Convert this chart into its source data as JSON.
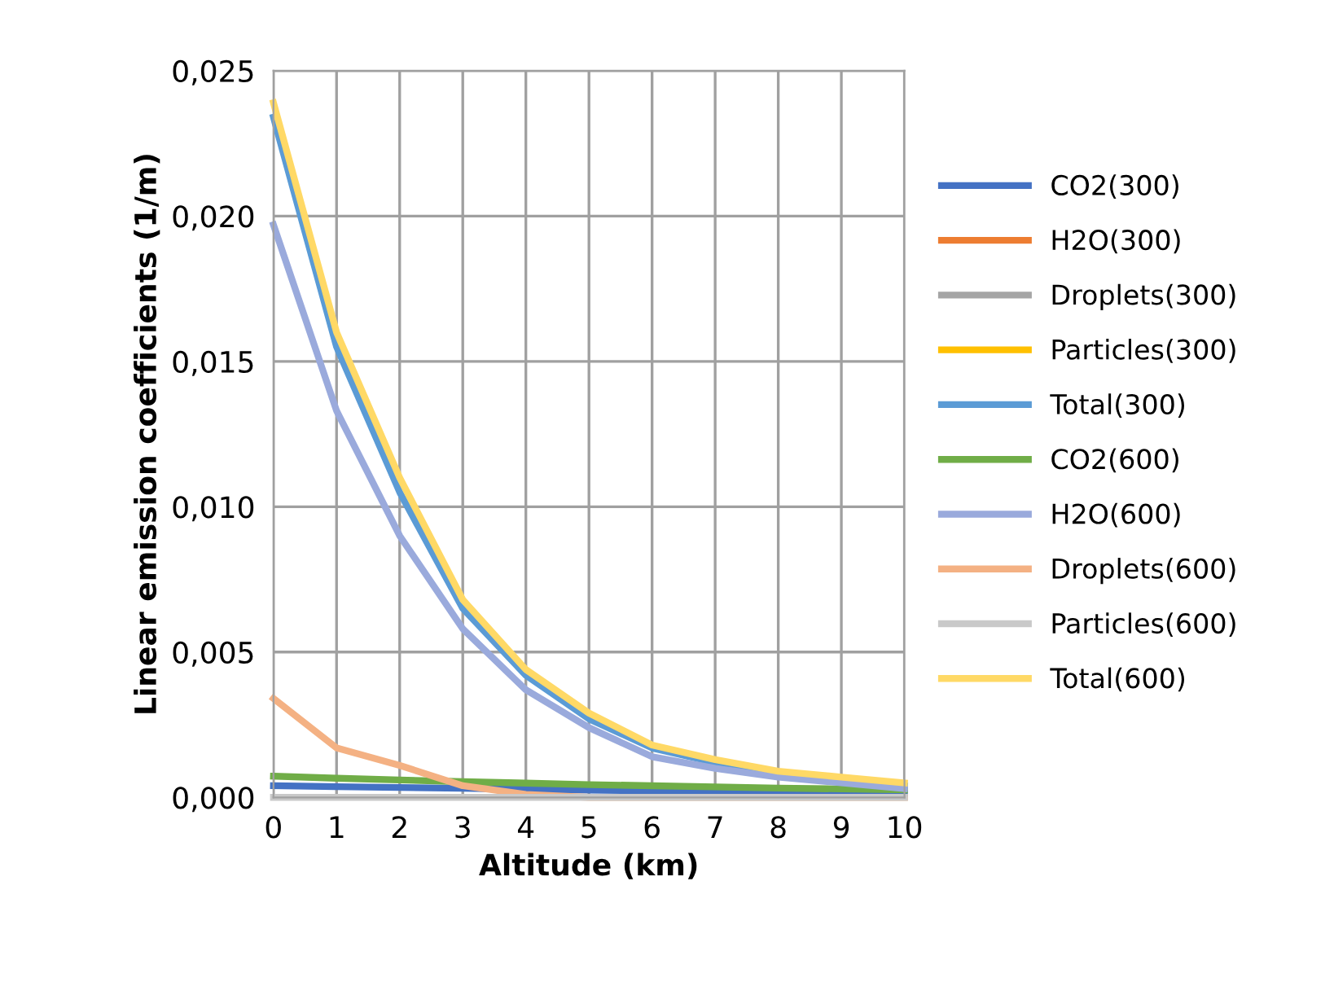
{
  "chart_data": {
    "type": "line",
    "xlabel": "Altitude (km)",
    "ylabel": "Linear emission coefficients (1/m)",
    "x": [
      0,
      1,
      2,
      3,
      4,
      5,
      6,
      7,
      8,
      9,
      10
    ],
    "series": [
      {
        "name": "CO2(300)",
        "color": "#4472c4",
        "values": [
          0.0004,
          0.00037,
          0.00034,
          0.00031,
          0.00028,
          0.00025,
          0.00022,
          0.0002,
          0.00017,
          0.00015,
          0.00013
        ]
      },
      {
        "name": "H2O(300)",
        "color": "#ed7d31",
        "values": [
          null,
          null,
          null,
          null,
          null,
          null,
          null,
          null,
          null,
          null,
          null
        ]
      },
      {
        "name": "Droplets(300)",
        "color": "#a5a5a5",
        "values": [
          null,
          null,
          null,
          null,
          null,
          null,
          null,
          null,
          null,
          null,
          null
        ]
      },
      {
        "name": "Particles(300)",
        "color": "#ffc000",
        "values": [
          null,
          null,
          null,
          null,
          null,
          null,
          null,
          null,
          null,
          null,
          null
        ]
      },
      {
        "name": "Total(300)",
        "color": "#5b9bd5",
        "values": [
          0.0234,
          0.0155,
          0.0105,
          0.0065,
          0.0042,
          0.0027,
          0.0017,
          0.0012,
          0.0008,
          0.0006,
          0.0004
        ]
      },
      {
        "name": "CO2(600)",
        "color": "#70ad47",
        "values": [
          0.00073,
          0.00066,
          0.0006,
          0.00054,
          0.00049,
          0.00044,
          0.0004,
          0.00036,
          0.00032,
          0.00029,
          0.00026
        ]
      },
      {
        "name": "H2O(600)",
        "color": "#9aaadc",
        "values": [
          0.0197,
          0.0133,
          0.009,
          0.0058,
          0.0037,
          0.0024,
          0.0014,
          0.001,
          0.0007,
          0.0005,
          0.0003
        ]
      },
      {
        "name": "Droplets(600)",
        "color": "#f4b183",
        "values": [
          0.0034,
          0.0017,
          0.0011,
          0.0004,
          0.0001,
          0,
          0,
          0,
          0,
          0,
          0
        ]
      },
      {
        "name": "Particles(600)",
        "color": "#c9c9c9",
        "values": [
          0,
          0,
          0,
          0,
          0,
          0,
          0,
          0,
          0,
          0,
          0
        ]
      },
      {
        "name": "Total(600)",
        "color": "#ffd966",
        "values": [
          0.0239,
          0.016,
          0.011,
          0.0068,
          0.0044,
          0.0029,
          0.0018,
          0.0013,
          0.0009,
          0.0007,
          0.0005
        ]
      }
    ],
    "xlim": [
      0,
      10
    ],
    "xticks": [
      0,
      1,
      2,
      3,
      4,
      5,
      6,
      7,
      8,
      9,
      10
    ],
    "ylim": [
      0,
      0.025
    ],
    "yticks": [
      {
        "value": 0,
        "label": "0,000"
      },
      {
        "value": 0.005,
        "label": "0,005"
      },
      {
        "value": 0.01,
        "label": "0,010"
      },
      {
        "value": 0.015,
        "label": "0,015"
      },
      {
        "value": 0.02,
        "label": "0,020"
      },
      {
        "value": 0.025,
        "label": "0,025"
      }
    ],
    "grid": true,
    "legend": "right",
    "marker": "none",
    "line_style": "solid"
  }
}
